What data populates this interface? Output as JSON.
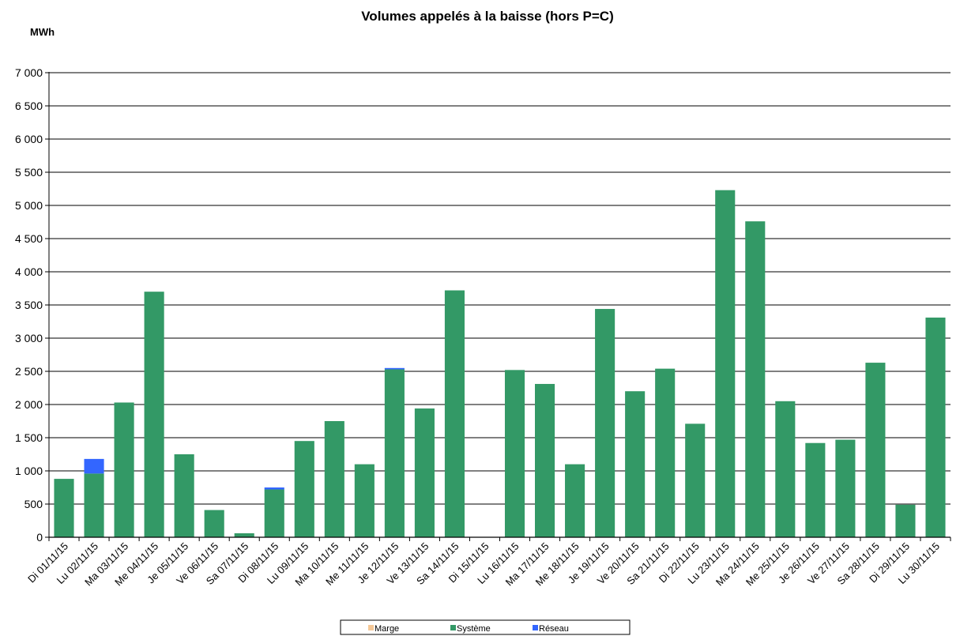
{
  "chart_data": {
    "type": "bar",
    "stacked": true,
    "title": "Volumes appelés à la baisse (hors P=C)",
    "ylabel": "MWh",
    "xlabel": "",
    "ylim": [
      0,
      7000
    ],
    "yticks": [
      0,
      500,
      1000,
      1500,
      2000,
      2500,
      3000,
      3500,
      4000,
      4500,
      5000,
      5500,
      6000,
      6500,
      7000
    ],
    "ytick_labels": [
      "0",
      "500",
      "1 000",
      "1 500",
      "2 000",
      "2 500",
      "3 000",
      "3 500",
      "4 000",
      "4 500",
      "5 000",
      "5 500",
      "6 000",
      "6 500",
      "7 000"
    ],
    "grid": true,
    "legend_position": "bottom",
    "categories": [
      "Di 01/11/15",
      "Lu 02/11/15",
      "Ma 03/11/15",
      "Me 04/11/15",
      "Je 05/11/15",
      "Ve 06/11/15",
      "Sa 07/11/15",
      "Di 08/11/15",
      "Lu 09/11/15",
      "Ma 10/11/15",
      "Me 11/11/15",
      "Je 12/11/15",
      "Ve 13/11/15",
      "Sa 14/11/15",
      "Di 15/11/15",
      "Lu 16/11/15",
      "Ma 17/11/15",
      "Me 18/11/15",
      "Je 19/11/15",
      "Ve 20/11/15",
      "Sa 21/11/15",
      "Di 22/11/15",
      "Lu 23/11/15",
      "Ma 24/11/15",
      "Me 25/11/15",
      "Je 26/11/15",
      "Ve 27/11/15",
      "Sa 28/11/15",
      "Di 29/11/15",
      "Lu 30/11/15"
    ],
    "series": [
      {
        "name": "Marge",
        "color": "#f5c897",
        "values": [
          0,
          0,
          0,
          0,
          0,
          0,
          0,
          0,
          0,
          0,
          0,
          0,
          0,
          0,
          0,
          0,
          0,
          0,
          0,
          0,
          0,
          0,
          0,
          0,
          0,
          0,
          0,
          0,
          0,
          0
        ]
      },
      {
        "name": "Système",
        "color": "#339966",
        "values": [
          880,
          960,
          2030,
          3700,
          1250,
          410,
          60,
          720,
          1450,
          1750,
          1100,
          2530,
          1940,
          3720,
          0,
          2520,
          2310,
          1100,
          3440,
          2200,
          2540,
          1710,
          5230,
          4760,
          2050,
          1420,
          1470,
          2630,
          490,
          3310
        ]
      },
      {
        "name": "Réseau",
        "color": "#3366ff",
        "values": [
          0,
          220,
          0,
          0,
          0,
          0,
          0,
          30,
          0,
          0,
          0,
          20,
          0,
          0,
          0,
          0,
          0,
          0,
          0,
          0,
          0,
          0,
          0,
          0,
          0,
          0,
          0,
          0,
          0,
          0
        ]
      }
    ]
  }
}
